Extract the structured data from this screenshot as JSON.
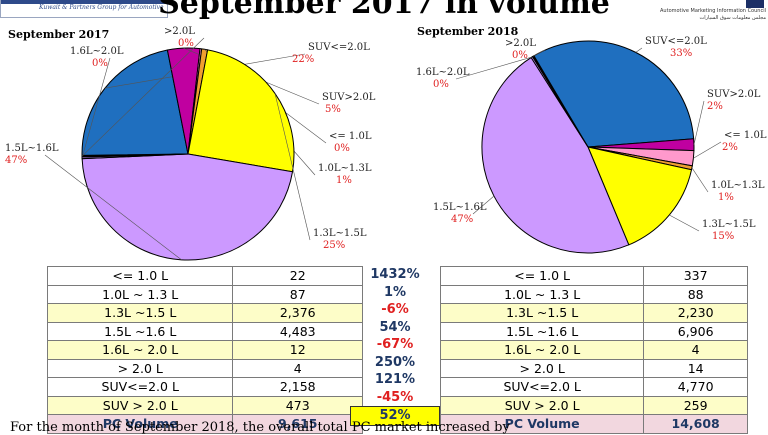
{
  "title": "September 2017 in volume",
  "header": {
    "left_logo_text": "Kuwait & Partners Group for Automotive",
    "right_logo_text": "Automotive Marketing Information Council",
    "right_logo_arabic": "مجلس معلومات سوق السيارات"
  },
  "chart_data": [
    {
      "type": "pie",
      "title": "September 2017",
      "slices": [
        {
          "label": "SUV<=2.0L",
          "pct_label": "22%",
          "value": 2158,
          "color": "#1f6fbf"
        },
        {
          "label": "SUV>2.0L",
          "pct_label": "5%",
          "value": 473,
          "color": "#c000a0"
        },
        {
          "label": "<= 1.0L",
          "pct_label": "0%",
          "value": 22,
          "color": "#ff99cc"
        },
        {
          "label": "1.0L~1.3L",
          "pct_label": "1%",
          "value": 87,
          "color": "#f0a030"
        },
        {
          "label": "1.3L~1.5L",
          "pct_label": "25%",
          "value": 2376,
          "color": "#ffff00"
        },
        {
          "label": "1.5L~1.6L",
          "pct_label": "47%",
          "value": 4483,
          "color": "#cc99ff"
        },
        {
          "label": "1.6L~2.0L",
          "pct_label": "0%",
          "value": 12,
          "color": "#cc99ff"
        },
        {
          "label": ">2.0L",
          "pct_label": "0%",
          "value": 4,
          "color": "#000000"
        }
      ]
    },
    {
      "type": "pie",
      "title": "September 2018",
      "slices": [
        {
          "label": "SUV<=2.0L",
          "pct_label": "33%",
          "value": 4770,
          "color": "#1f6fbf"
        },
        {
          "label": "SUV>2.0L",
          "pct_label": "2%",
          "value": 259,
          "color": "#c000a0"
        },
        {
          "label": "<= 1.0L",
          "pct_label": "2%",
          "value": 337,
          "color": "#ff99cc"
        },
        {
          "label": "1.0L~1.3L",
          "pct_label": "1%",
          "value": 88,
          "color": "#f0a030"
        },
        {
          "label": "1.3L~1.5L",
          "pct_label": "15%",
          "value": 2230,
          "color": "#ffff00"
        },
        {
          "label": "1.5L~1.6L",
          "pct_label": "47%",
          "value": 6906,
          "color": "#cc99ff"
        },
        {
          "label": "1.6L~2.0L",
          "pct_label": "0%",
          "value": 4,
          "color": "#cc99ff"
        },
        {
          "label": ">2.0L",
          "pct_label": "0%",
          "value": 14,
          "color": "#000000"
        }
      ]
    }
  ],
  "table": {
    "rows": [
      {
        "label": "<= 1.0 L",
        "y2017": "22",
        "change": "1432%",
        "dir": "up",
        "y2018": "337",
        "highlight": false
      },
      {
        "label": "1.0L ~ 1.3 L",
        "y2017": "87",
        "change": "1%",
        "dir": "up",
        "y2018": "88",
        "highlight": false
      },
      {
        "label": "1.3L ~1.5 L",
        "y2017": "2,376",
        "change": "-6%",
        "dir": "down",
        "y2018": "2,230",
        "highlight": true
      },
      {
        "label": "1.5L ~1.6 L",
        "y2017": "4,483",
        "change": "54%",
        "dir": "up",
        "y2018": "6,906",
        "highlight": false
      },
      {
        "label": "1.6L ~ 2.0 L",
        "y2017": "12",
        "change": "-67%",
        "dir": "down",
        "y2018": "4",
        "highlight": true
      },
      {
        "label": "> 2.0 L",
        "y2017": "4",
        "change": "250%",
        "dir": "up",
        "y2018": "14",
        "highlight": false
      },
      {
        "label": "SUV<=2.0 L",
        "y2017": "2,158",
        "change": "121%",
        "dir": "up",
        "y2018": "4,770",
        "highlight": false
      },
      {
        "label": "SUV > 2.0 L",
        "y2017": "473",
        "change": "-45%",
        "dir": "down",
        "y2018": "259",
        "highlight": true
      }
    ],
    "total": {
      "label": "PC Volume",
      "y2017": "9,615",
      "change": "52%",
      "y2018": "14,608"
    }
  },
  "footer": "For the month of September 2018, the overall total PC market increased by"
}
